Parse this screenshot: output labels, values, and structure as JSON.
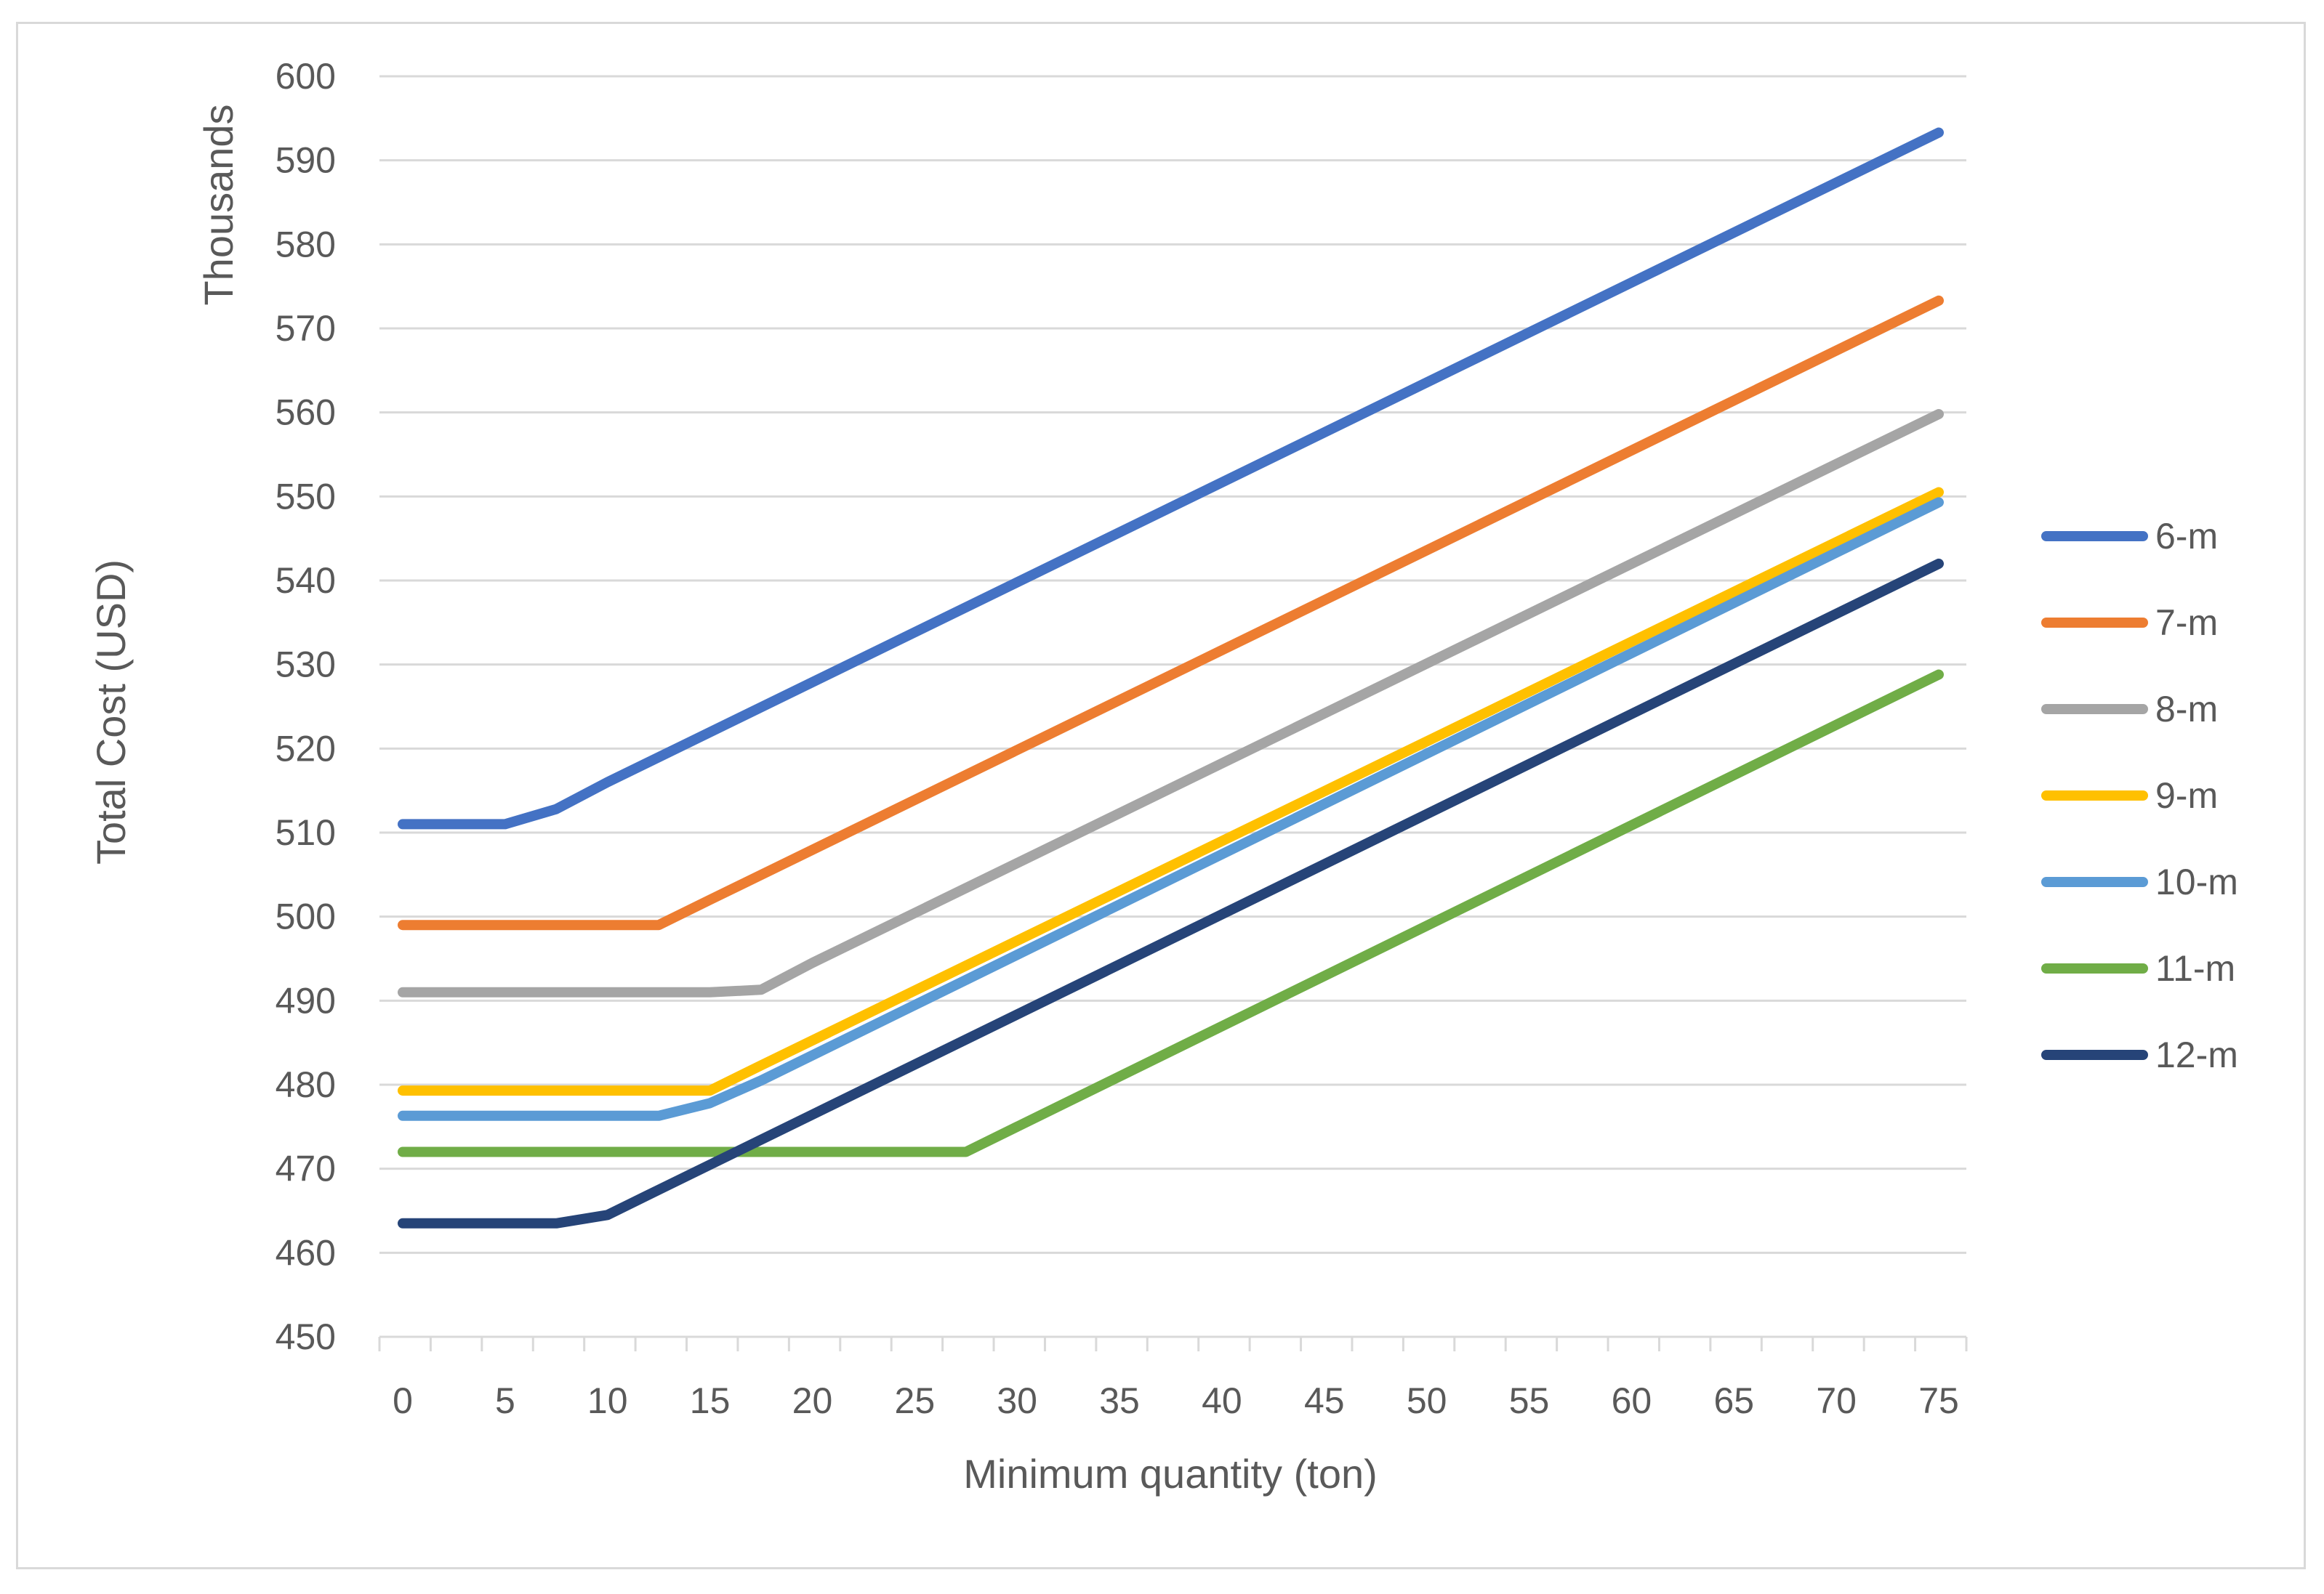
{
  "chart_data": {
    "type": "line",
    "title": "",
    "xlabel": "Minimum quantity (ton)",
    "ylabel": "Total Cost (USD)",
    "yunit_label": "Thousands",
    "xlim": [
      0,
      75
    ],
    "ylim": [
      450,
      600
    ],
    "xticks": [
      0,
      5,
      10,
      15,
      20,
      25,
      30,
      35,
      40,
      45,
      50,
      55,
      60,
      65,
      70,
      75
    ],
    "xtick_labels": [
      "0",
      "5",
      "10",
      "15",
      "20",
      "25",
      "30",
      "35",
      "40",
      "45",
      "50",
      "55",
      "60",
      "65",
      "70",
      "75"
    ],
    "yticks": [
      450,
      460,
      470,
      480,
      490,
      500,
      510,
      520,
      530,
      540,
      550,
      560,
      570,
      580,
      590,
      600
    ],
    "ytick_labels": [
      "450",
      "460",
      "470",
      "480",
      "490",
      "500",
      "510",
      "520",
      "530",
      "540",
      "550",
      "560",
      "570",
      "580",
      "590",
      "600"
    ],
    "grid": true,
    "legend_position": "right",
    "series": [
      {
        "name": "6-m",
        "color": "#4472C4",
        "points": [
          [
            0,
            511
          ],
          [
            5,
            511
          ],
          [
            7.5,
            512.8
          ],
          [
            10,
            516
          ],
          [
            75,
            593.3
          ]
        ]
      },
      {
        "name": "7-m",
        "color": "#ED7D31",
        "points": [
          [
            0,
            499
          ],
          [
            12.5,
            499
          ],
          [
            15,
            502
          ],
          [
            75,
            573.3
          ]
        ]
      },
      {
        "name": "8-m",
        "color": "#A5A5A5",
        "points": [
          [
            0,
            491
          ],
          [
            15,
            491
          ],
          [
            17.5,
            491.3
          ],
          [
            20,
            494.5
          ],
          [
            75,
            559.8
          ]
        ]
      },
      {
        "name": "9-m",
        "color": "#FFC000",
        "points": [
          [
            0,
            479.3
          ],
          [
            15,
            479.3
          ],
          [
            17.5,
            482.3
          ],
          [
            75,
            550.5
          ]
        ]
      },
      {
        "name": "10-m",
        "color": "#5B9BD5",
        "points": [
          [
            0,
            476.3
          ],
          [
            12.5,
            476.3
          ],
          [
            15,
            477.8
          ],
          [
            17.5,
            480.5
          ],
          [
            75,
            549.3
          ]
        ]
      },
      {
        "name": "11-m",
        "color": "#70AD47",
        "points": [
          [
            0,
            472
          ],
          [
            27.5,
            472
          ],
          [
            30,
            475
          ],
          [
            75,
            528.8
          ]
        ]
      },
      {
        "name": "12-m",
        "color": "#264478",
        "points": [
          [
            0,
            463.5
          ],
          [
            7.5,
            463.5
          ],
          [
            10,
            464.5
          ],
          [
            12.5,
            467.5
          ],
          [
            75,
            542
          ]
        ]
      }
    ]
  }
}
